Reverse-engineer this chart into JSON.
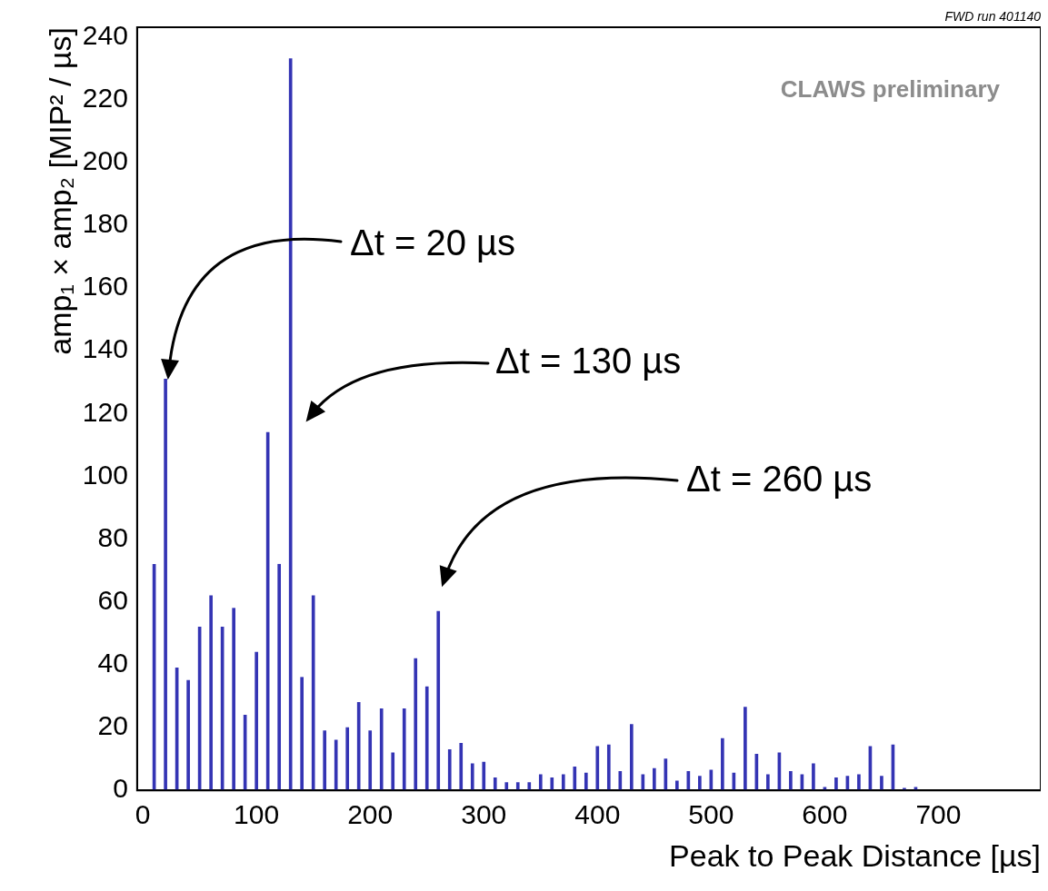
{
  "chart_data": {
    "type": "bar",
    "xlabel": "Peak to Peak Distance [µs]",
    "ylabel": "amp₁ × amp₂ [MIP² / µs]",
    "x": [
      10,
      20,
      30,
      40,
      50,
      60,
      70,
      80,
      90,
      100,
      110,
      120,
      130,
      140,
      150,
      160,
      170,
      180,
      190,
      200,
      210,
      220,
      230,
      240,
      250,
      260,
      270,
      280,
      290,
      300,
      310,
      320,
      330,
      340,
      350,
      360,
      370,
      380,
      390,
      400,
      410,
      420,
      430,
      440,
      450,
      460,
      470,
      480,
      490,
      500,
      510,
      520,
      530,
      540,
      550,
      560,
      570,
      580,
      590,
      600,
      610,
      620,
      630,
      640,
      650,
      660,
      670,
      680
    ],
    "values": [
      72,
      131,
      39,
      35,
      52,
      62,
      52,
      58,
      24,
      44,
      114,
      72,
      233,
      36,
      62,
      19,
      16,
      20,
      28,
      19,
      26,
      12,
      26,
      42,
      33,
      57,
      13,
      15,
      8.5,
      9,
      4,
      2.5,
      2.5,
      2.5,
      5,
      4,
      5,
      7.5,
      5.5,
      14,
      14.5,
      6,
      21,
      5,
      7,
      10,
      3,
      6,
      4.5,
      6.5,
      16.5,
      5.5,
      26.5,
      11.5,
      5,
      12,
      6,
      5,
      8.5,
      1,
      4,
      4.5,
      5,
      14,
      4.5,
      14.5,
      0.7,
      1
    ],
    "color": "#3434b4",
    "xlim": [
      -5,
      790
    ],
    "xticks": [
      0,
      100,
      200,
      300,
      400,
      500,
      600,
      700
    ],
    "ylim": [
      0,
      243
    ],
    "yticks": [
      0,
      20,
      40,
      60,
      80,
      100,
      120,
      140,
      160,
      180,
      200,
      220,
      240
    ],
    "grid": false,
    "legend": false,
    "annotations": [
      "FWD run 401140",
      "CLAWS preliminary",
      "Δt = 20 µs",
      "Δt = 130 µs",
      "Δt = 260 µs"
    ]
  }
}
